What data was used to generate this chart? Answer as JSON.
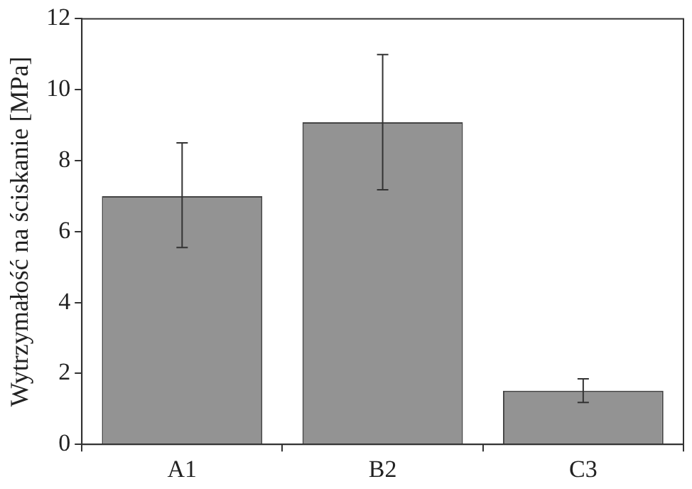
{
  "chart_data": {
    "type": "bar",
    "ylabel": "Wytrzymałość na ściskanie [MPa]",
    "categories": [
      "A1",
      "B2",
      "C3"
    ],
    "values": [
      7.0,
      9.08,
      1.51
    ],
    "errors": [
      [
        5.55,
        8.5
      ],
      [
        7.18,
        10.99
      ],
      [
        1.18,
        1.85
      ]
    ],
    "color": "#939393",
    "ylim": [
      0,
      12
    ],
    "yticks": [
      0,
      2,
      4,
      6,
      8,
      10,
      12
    ],
    "grid": false,
    "legend": false
  }
}
